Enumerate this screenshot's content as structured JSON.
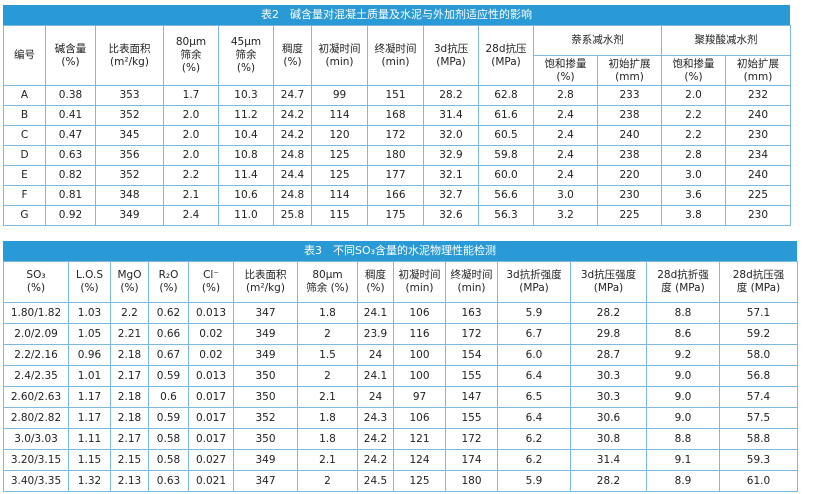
{
  "table2": {
    "title": "表2　碱含量对混凝土质量及水泥与外加剂适应性的影响",
    "headers": [
      "编号",
      "碱含量\n(%)",
      "比表面积\n(m²/kg)",
      "80μm\n筛余\n(%)",
      "45μm\n筛余\n(%)",
      "稠度\n(%)",
      "初凝时间\n(min)",
      "终凝时间\n(min)",
      "3d抗压\n(MPa)",
      "28d抗压\n(MPa)"
    ],
    "groups": [
      {
        "label": "萘系减水剂",
        "sub": [
          "饱和掺量\n(%)",
          "初始扩展\n(mm)"
        ]
      },
      {
        "label": "聚羧酸减水剂",
        "sub": [
          "饱和掺量\n(%)",
          "初始扩展\n(mm)"
        ]
      }
    ],
    "rows": [
      [
        "A",
        "0.38",
        "353",
        "1.7",
        "10.3",
        "24.7",
        "99",
        "151",
        "28.2",
        "62.8",
        "2.8",
        "233",
        "2.0",
        "232"
      ],
      [
        "B",
        "0.41",
        "352",
        "2.0",
        "11.2",
        "24.2",
        "114",
        "168",
        "31.4",
        "61.6",
        "2.4",
        "238",
        "2.2",
        "240"
      ],
      [
        "C",
        "0.47",
        "345",
        "2.0",
        "10.4",
        "24.2",
        "120",
        "172",
        "32.0",
        "60.5",
        "2.4",
        "240",
        "2.2",
        "230"
      ],
      [
        "D",
        "0.63",
        "356",
        "2.0",
        "10.8",
        "24.8",
        "125",
        "180",
        "32.9",
        "59.8",
        "2.4",
        "238",
        "2.8",
        "234"
      ],
      [
        "E",
        "0.82",
        "352",
        "2.2",
        "11.4",
        "24.4",
        "125",
        "177",
        "32.1",
        "60.0",
        "2.4",
        "220",
        "3.0",
        "240"
      ],
      [
        "F",
        "0.81",
        "348",
        "2.1",
        "10.6",
        "24.8",
        "114",
        "166",
        "32.7",
        "56.6",
        "3.0",
        "230",
        "3.6",
        "225"
      ],
      [
        "G",
        "0.92",
        "349",
        "2.4",
        "11.0",
        "25.8",
        "115",
        "175",
        "32.6",
        "56.3",
        "3.2",
        "225",
        "3.8",
        "230"
      ]
    ]
  },
  "table3": {
    "title": "表3　不同SO₃含量的水泥物理性能检测",
    "headers": [
      "SO₃\n(%)",
      "L.O.S\n(%)",
      "MgO\n(%)",
      "R₂O\n(%)",
      "Cl⁻\n(%)",
      "比表面积\n(m²/kg)",
      "80μm\n筛余 (%)",
      "稠度\n(%)",
      "初凝时间\n(min)",
      "终凝时间\n(min)",
      "3d抗折强度\n(MPa)",
      "3d抗压强度\n(MPa)",
      "28d抗折强\n度 (MPa)",
      "28d抗压强\n度 (MPa)"
    ],
    "rows": [
      [
        "1.80/1.82",
        "1.03",
        "2.2",
        "0.62",
        "0.013",
        "347",
        "1.8",
        "24.1",
        "106",
        "163",
        "5.9",
        "28.2",
        "8.8",
        "57.1"
      ],
      [
        "2.0/2.09",
        "1.05",
        "2.21",
        "0.66",
        "0.02",
        "349",
        "2",
        "23.9",
        "116",
        "172",
        "6.7",
        "29.8",
        "8.6",
        "59.2"
      ],
      [
        "2.2/2.16",
        "0.96",
        "2.18",
        "0.67",
        "0.02",
        "349",
        "1.5",
        "24",
        "100",
        "154",
        "6.0",
        "28.7",
        "9.2",
        "58.0"
      ],
      [
        "2.4/2.35",
        "1.01",
        "2.17",
        "0.59",
        "0.013",
        "350",
        "2",
        "24.1",
        "100",
        "155",
        "6.4",
        "30.3",
        "9.0",
        "56.8"
      ],
      [
        "2.60/2.63",
        "1.17",
        "2.18",
        "0.6",
        "0.017",
        "350",
        "2.1",
        "24",
        "97",
        "147",
        "6.5",
        "30.3",
        "9.0",
        "57.4"
      ],
      [
        "2.80/2.82",
        "1.17",
        "2.18",
        "0.59",
        "0.017",
        "352",
        "1.8",
        "24.3",
        "106",
        "155",
        "6.4",
        "30.6",
        "9.0",
        "57.5"
      ],
      [
        "3.0/3.03",
        "1.11",
        "2.17",
        "0.58",
        "0.017",
        "350",
        "1.8",
        "24.2",
        "121",
        "172",
        "6.2",
        "30.8",
        "8.8",
        "58.8"
      ],
      [
        "3.20/3.15",
        "1.15",
        "2.15",
        "0.58",
        "0.027",
        "349",
        "2.1",
        "24.2",
        "124",
        "174",
        "6.2",
        "31.4",
        "9.1",
        "59.3"
      ],
      [
        "3.40/3.35",
        "1.32",
        "2.13",
        "0.63",
        "0.021",
        "347",
        "2",
        "24.5",
        "125",
        "180",
        "5.9",
        "28.2",
        "8.9",
        "61.0"
      ]
    ]
  }
}
